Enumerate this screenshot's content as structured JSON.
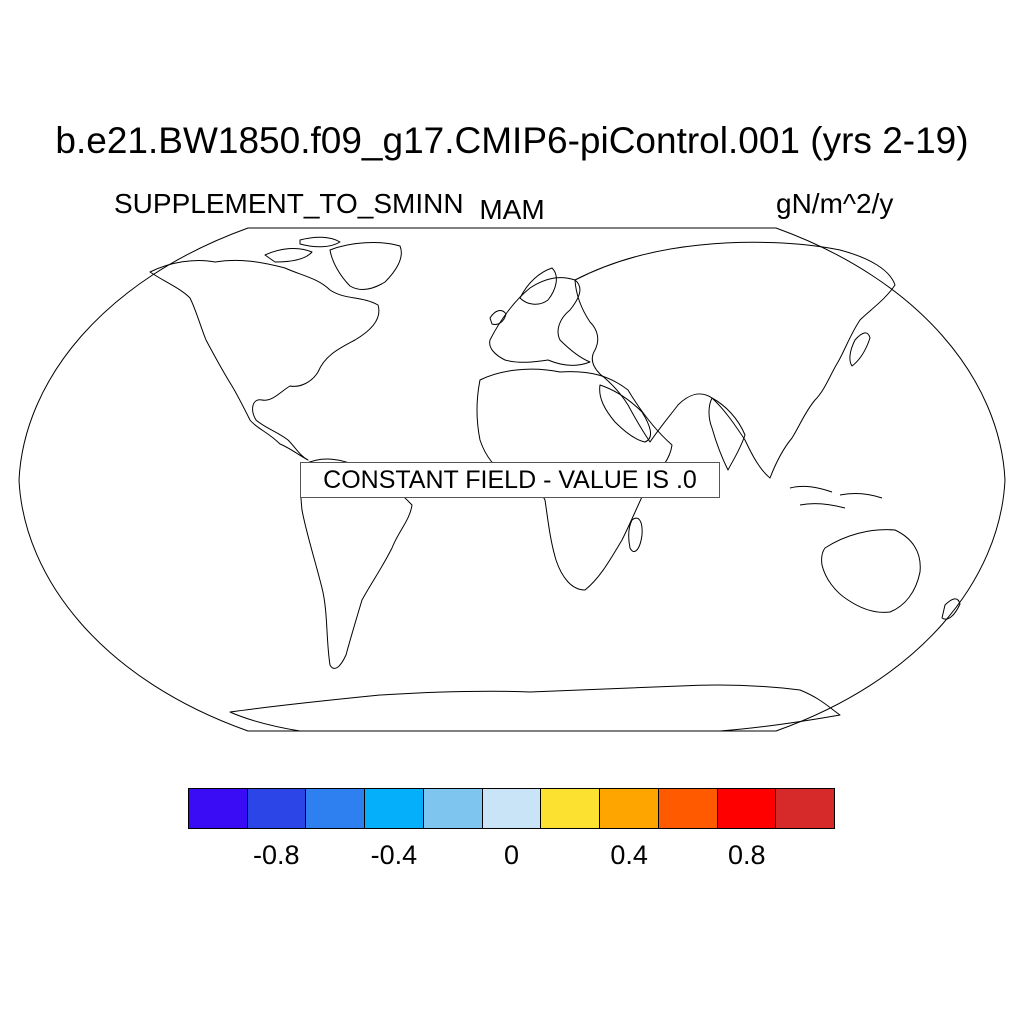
{
  "title": "b.e21.BW1850.f09_g17.CMIP6-piControl.001 (yrs 2-19)",
  "left_label": "SUPPLEMENT_TO_SMINN",
  "center_label": "MAM",
  "right_label": "gN/m^2/y",
  "notice": "CONSTANT FIELD - VALUE IS .0",
  "colorbar": {
    "colors": [
      "#3a0cf5",
      "#2c45e6",
      "#2e7ff0",
      "#06aff9",
      "#7ec6ef",
      "#c8e4f6",
      "#fde130",
      "#ffa500",
      "#ff5a00",
      "#ff0000",
      "#d62a2a"
    ],
    "ticks": [
      {
        "value": -0.8,
        "label": "-0.8"
      },
      {
        "value": -0.4,
        "label": "-0.4"
      },
      {
        "value": 0,
        "label": "0"
      },
      {
        "value": 0.4,
        "label": "0.4"
      },
      {
        "value": 0.8,
        "label": "0.8"
      }
    ],
    "range": [
      -1.1,
      1.1
    ]
  },
  "map": {
    "projection": "Robinson",
    "field_value": 0
  }
}
